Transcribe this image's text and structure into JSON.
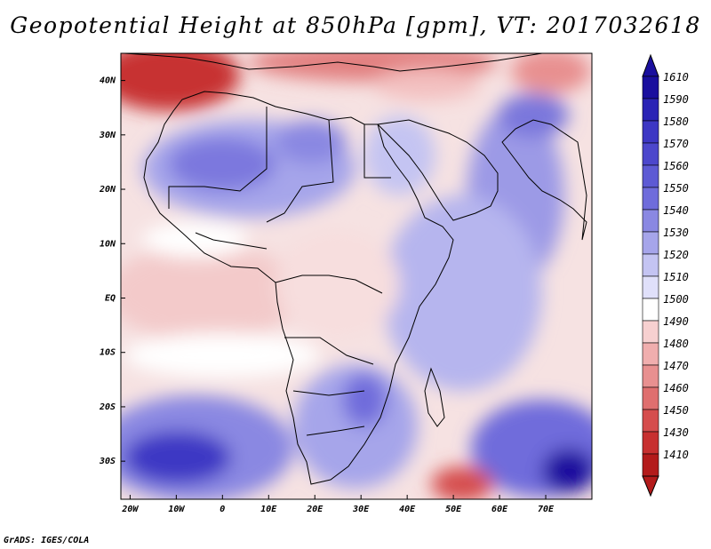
{
  "title": "Geopotential Height at 850hPa [gpm], VT: 2017032618",
  "credit": "GrADS: IGES/COLA",
  "map": {
    "lon_ticks": [
      "20W",
      "10W",
      "0",
      "10E",
      "20E",
      "30E",
      "40E",
      "50E",
      "60E",
      "70E"
    ],
    "lat_ticks": [
      "40N",
      "30N",
      "20N",
      "10N",
      "EQ",
      "10S",
      "20S",
      "30S"
    ],
    "lon_range": [
      -22,
      80
    ],
    "lat_range": [
      -37,
      45
    ],
    "colorbar_levels": [
      "1610",
      "1590",
      "1580",
      "1570",
      "1560",
      "1550",
      "1540",
      "1530",
      "1520",
      "1510",
      "1500",
      "1490",
      "1480",
      "1470",
      "1460",
      "1450",
      "1430",
      "1410"
    ],
    "colorbar_colors": [
      "#1a0f9e",
      "#2a23b5",
      "#3d37c4",
      "#4c47cc",
      "#5d5ad4",
      "#6f6cdb",
      "#8a88e2",
      "#a6a5ea",
      "#c4c4f2",
      "#e0e0fa",
      "#ffffff",
      "#f7d0d0",
      "#f0aeae",
      "#e89090",
      "#df6f6f",
      "#d54d4d",
      "#c73030",
      "#b31b1b"
    ]
  }
}
